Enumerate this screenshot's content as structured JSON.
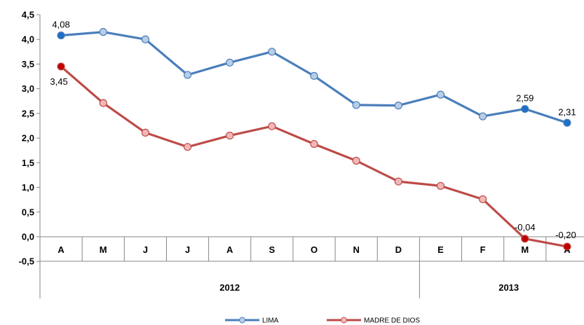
{
  "chart_data": {
    "type": "line",
    "categories": [
      "A",
      "M",
      "J",
      "J",
      "A",
      "S",
      "O",
      "N",
      "D",
      "E",
      "F",
      "M",
      "A"
    ],
    "year_groups": [
      {
        "label": "2012",
        "start": 0,
        "end": 8
      },
      {
        "label": "2013",
        "start": 9,
        "end": 12
      }
    ],
    "y_ticks": [
      "4,5",
      "4,0",
      "3,5",
      "3,0",
      "2,5",
      "2,0",
      "1,5",
      "1,0",
      "0,5",
      "0,0",
      "-0,5"
    ],
    "ylim": [
      -0.5,
      4.5
    ],
    "series": [
      {
        "name": "LIMA",
        "color": "#4a7ebb",
        "marker_fill": "#b9cde5",
        "highlight_fill": "#1f6fc5",
        "values": [
          4.08,
          4.15,
          4.0,
          3.28,
          3.53,
          3.75,
          3.26,
          2.67,
          2.66,
          2.88,
          2.44,
          2.59,
          2.31
        ],
        "highlight_indices": [
          0,
          11,
          12
        ],
        "labels": [
          {
            "index": 0,
            "text": "4,08"
          },
          {
            "index": 11,
            "text": "2,59"
          },
          {
            "index": 12,
            "text": "2,31"
          }
        ]
      },
      {
        "name": "MADRE DE DIOS",
        "color": "#be4b48",
        "marker_fill": "#f2b8b7",
        "highlight_fill": "#c00000",
        "values": [
          3.45,
          2.71,
          2.11,
          1.82,
          2.05,
          2.24,
          1.88,
          1.54,
          1.12,
          1.03,
          0.76,
          -0.04,
          -0.2
        ],
        "highlight_indices": [
          0,
          11,
          12
        ],
        "labels": [
          {
            "index": 0,
            "text": "3,45"
          },
          {
            "index": 11,
            "text": "-0,04"
          },
          {
            "index": 12,
            "text": "-0,20"
          }
        ]
      }
    ],
    "legend_position": "bottom",
    "grid": false
  }
}
